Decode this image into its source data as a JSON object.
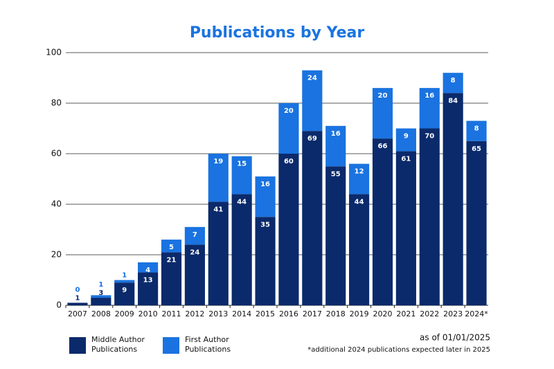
{
  "chart_data": {
    "type": "stacked_bar",
    "title": "Publications by Year",
    "categories": [
      "2007",
      "2008",
      "2009",
      "2010",
      "2011",
      "2012",
      "2013",
      "2014",
      "2015",
      "2016",
      "2017",
      "2018",
      "2019",
      "2020",
      "2021",
      "2022",
      "2023",
      "2024*"
    ],
    "series": [
      {
        "name": "Middle Author Publications",
        "color": "#0b2a6b",
        "values": [
          1,
          3,
          9,
          13,
          21,
          24,
          41,
          44,
          35,
          60,
          69,
          55,
          44,
          66,
          61,
          70,
          84,
          65
        ]
      },
      {
        "name": "First Author Publications",
        "color": "#1a73e0",
        "values": [
          0,
          1,
          1,
          4,
          5,
          7,
          19,
          15,
          16,
          20,
          24,
          16,
          12,
          20,
          9,
          16,
          8,
          8
        ]
      }
    ],
    "ylim": [
      0,
      100
    ],
    "yticks": [
      0,
      20,
      40,
      60,
      80,
      100
    ],
    "grid": true,
    "annotations": [
      "as of 01/01/2025",
      "*additional 2024 publications expected later in 2025"
    ]
  }
}
